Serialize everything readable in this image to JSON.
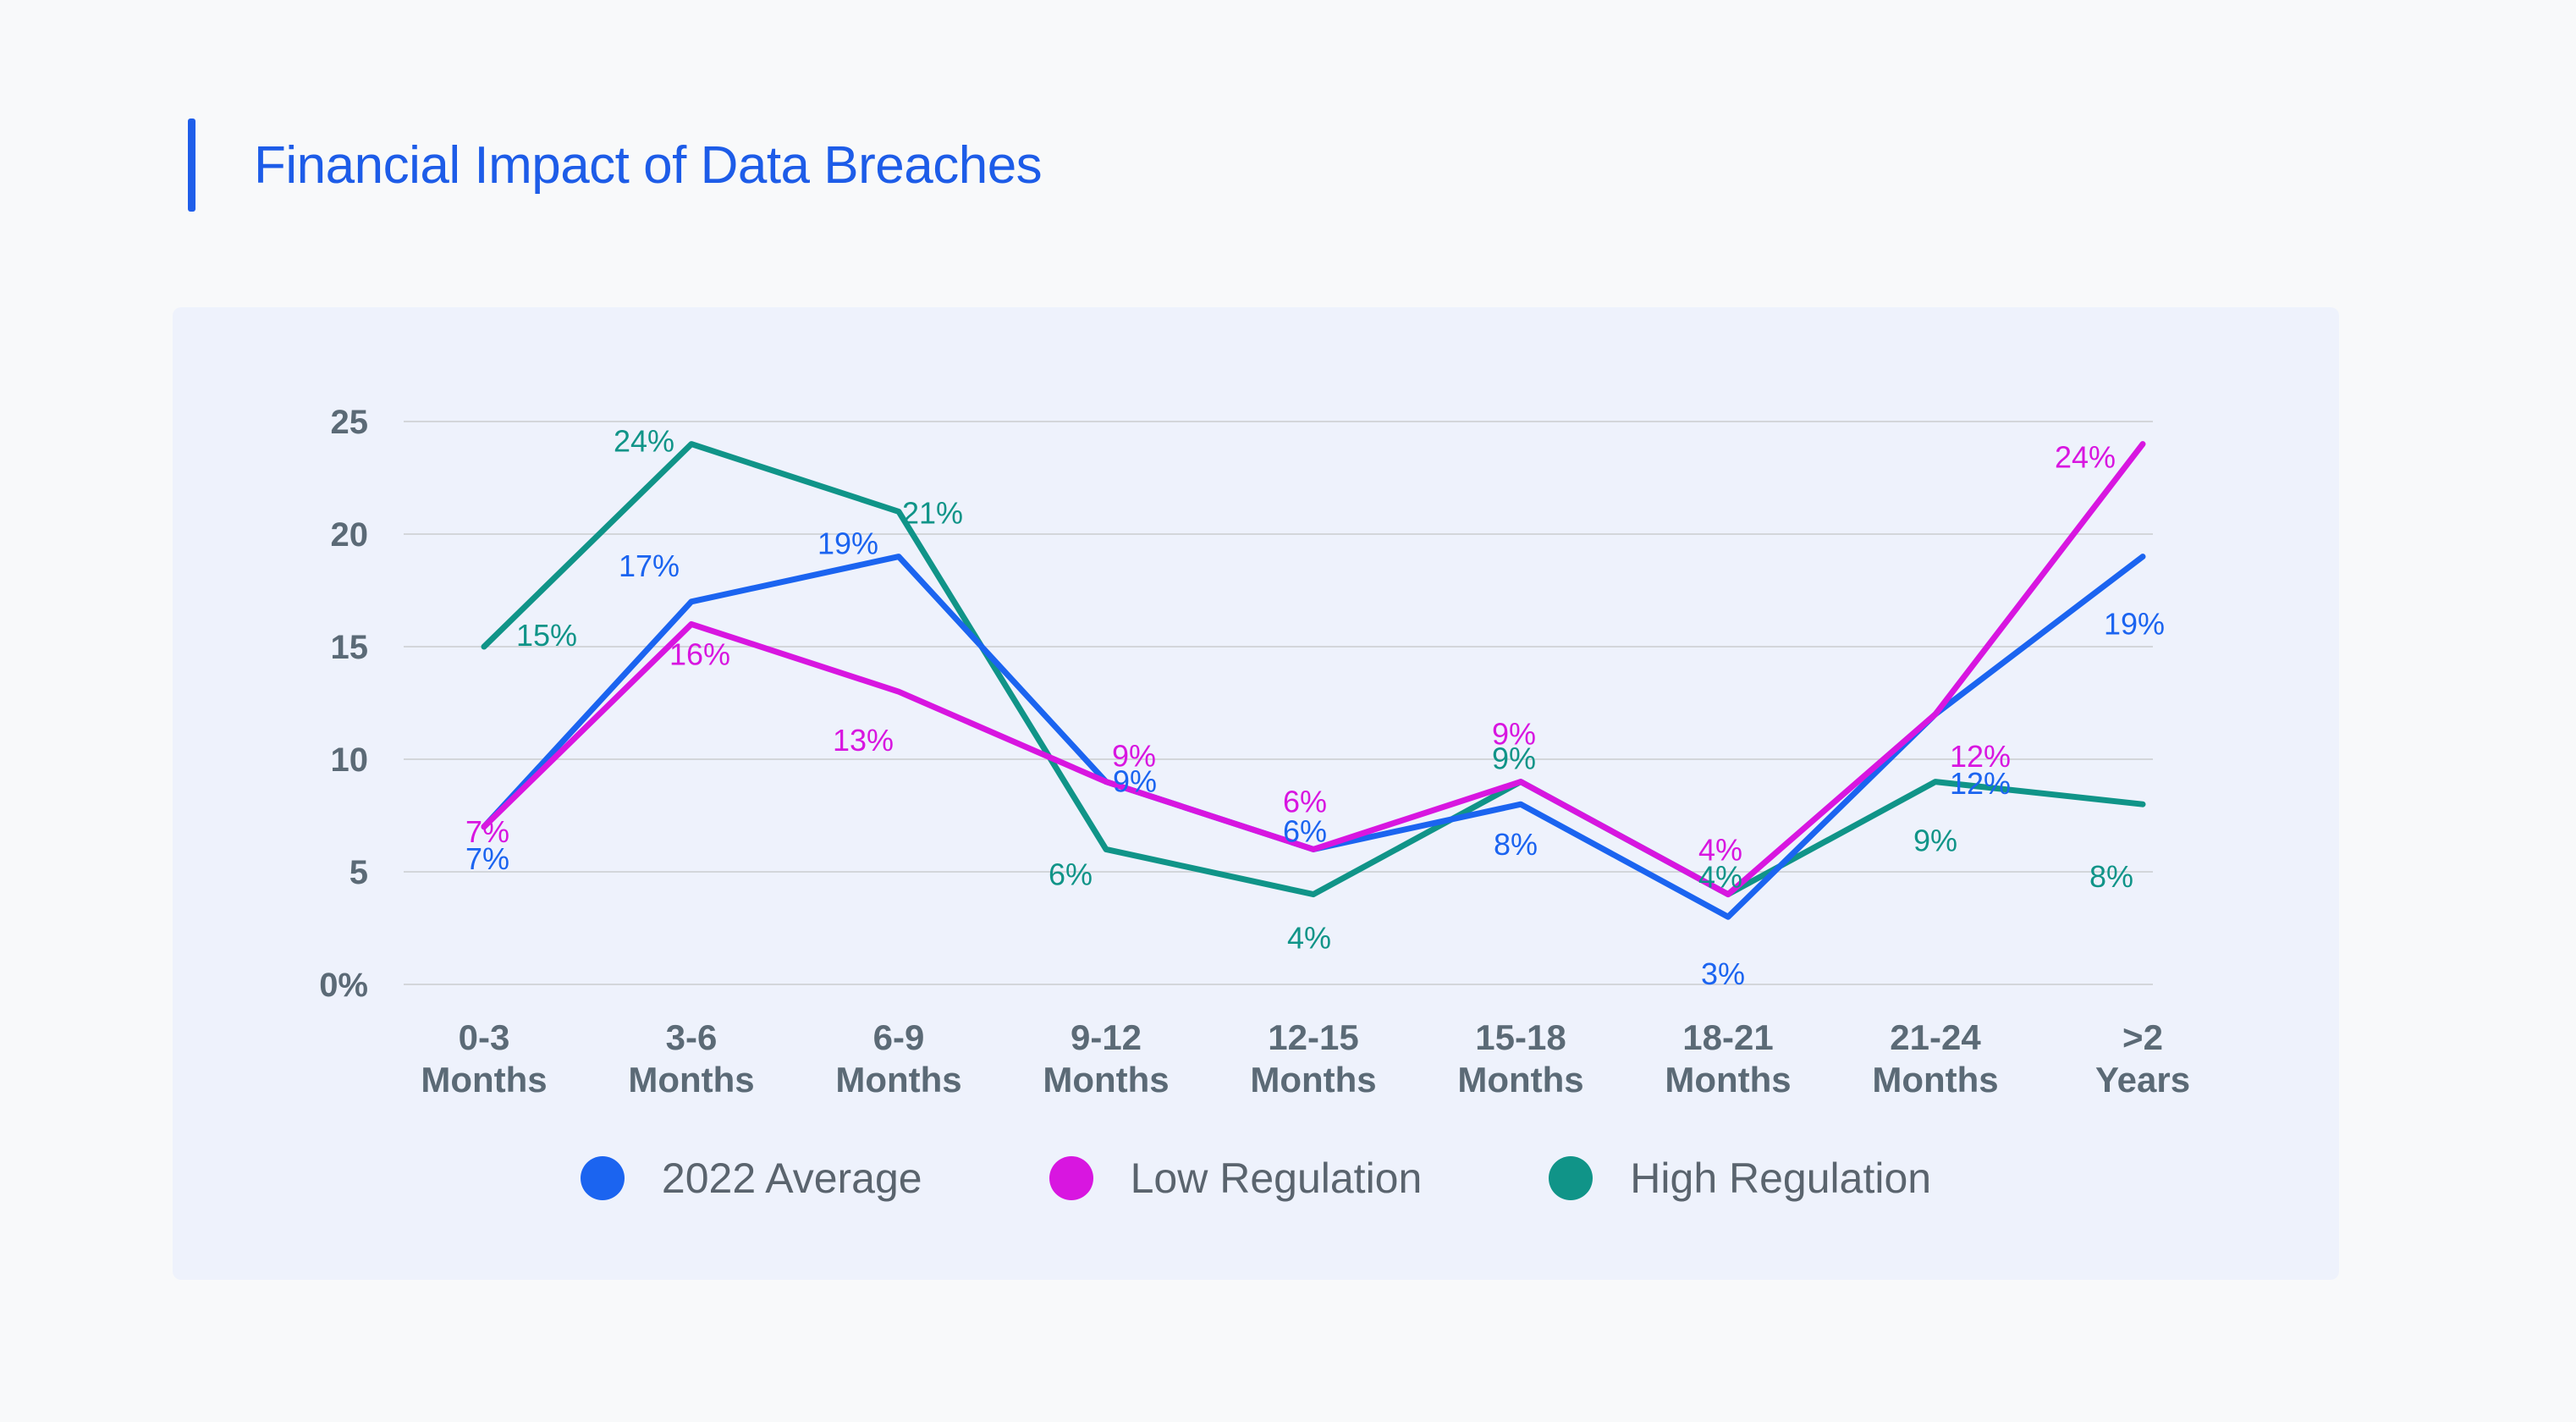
{
  "header": {
    "title": "Financial Impact of Data Breaches",
    "accent_color": "#1f5eea",
    "title_color": "#1d5ce8"
  },
  "panel": {
    "background": "#eef2fc"
  },
  "chart_data": {
    "type": "line",
    "title": "Financial Impact of Data Breaches",
    "xlabel": "",
    "ylabel": "",
    "ylim": [
      0,
      25
    ],
    "grid": true,
    "legend_position": "bottom",
    "categories": [
      [
        "0-3",
        "Months"
      ],
      [
        "3-6",
        "Months"
      ],
      [
        "6-9",
        "Months"
      ],
      [
        "9-12",
        "Months"
      ],
      [
        "12-15",
        "Months"
      ],
      [
        "15-18",
        "Months"
      ],
      [
        "18-21",
        "Months"
      ],
      [
        "21-24",
        "Months"
      ],
      [
        ">2",
        "Years"
      ]
    ],
    "y_axis": {
      "tick_values": [
        0,
        5,
        10,
        15,
        20,
        25
      ],
      "tick_labels": [
        "0%",
        "5",
        "10",
        "15",
        "20",
        "25"
      ],
      "tick_color": "#5b6a76",
      "grid_color": "#d3d6da"
    },
    "x_axis": {
      "label_color": "#5b6a76"
    },
    "series": [
      {
        "name": "2022 Average",
        "color": "#1b64f0",
        "values": [
          7,
          17,
          19,
          9,
          6,
          8,
          3,
          12,
          19
        ],
        "point_labels": [
          "7%",
          "17%",
          "19%",
          "9%",
          "6%",
          "8%",
          "3%",
          "12%",
          "19%"
        ],
        "label_offsets": [
          [
            4,
            38
          ],
          [
            -50,
            -42
          ],
          [
            -60,
            -15
          ],
          [
            34,
            0
          ],
          [
            -10,
            -21
          ],
          [
            -6,
            48
          ],
          [
            -6,
            68
          ],
          [
            53,
            82
          ],
          [
            -10,
            80
          ]
        ]
      },
      {
        "name": "Low Regulation",
        "color": "#d816e0",
        "values": [
          7,
          16,
          13,
          9,
          6,
          9,
          4,
          12,
          24
        ],
        "point_labels": [
          "7%",
          "16%",
          "13%",
          "9%",
          "6%",
          "9%",
          "4%",
          "12%",
          "24%"
        ],
        "label_offsets": [
          [
            4,
            6
          ],
          [
            10,
            36
          ],
          [
            -42,
            58
          ],
          [
            33,
            -30
          ],
          [
            -10,
            -56
          ],
          [
            -8,
            -56
          ],
          [
            -9,
            -52
          ],
          [
            53,
            50
          ],
          [
            -68,
            16
          ]
        ]
      },
      {
        "name": "High Regulation",
        "color": "#109488",
        "values": [
          15,
          24,
          21,
          6,
          4,
          9,
          4,
          9,
          8
        ],
        "point_labels": [
          "15%",
          "24%",
          "21%",
          "6%",
          "4%",
          "9%",
          "4%",
          "9%",
          "8%"
        ],
        "label_offsets": [
          [
            74,
            -13
          ],
          [
            -56,
            -3
          ],
          [
            40,
            2
          ],
          [
            -42,
            30
          ],
          [
            -5,
            52
          ],
          [
            -8,
            -27
          ],
          [
            -9,
            -20
          ],
          [
            0,
            70
          ],
          [
            -37,
            86
          ]
        ]
      }
    ],
    "draw_order": [
      2,
      0,
      1
    ]
  }
}
